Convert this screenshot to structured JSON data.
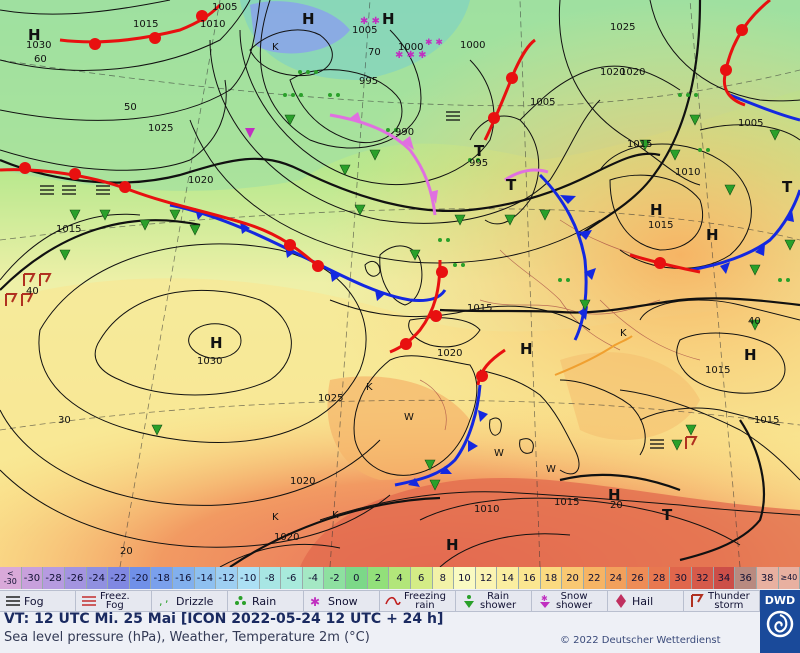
{
  "map": {
    "pressure_labels": [
      {
        "text": "1005"
      },
      {
        "text": "1010"
      },
      {
        "text": "1030"
      },
      {
        "text": "1015"
      },
      {
        "text": "1005"
      },
      {
        "text": "1000"
      },
      {
        "text": "1000"
      },
      {
        "text": "995"
      },
      {
        "text": "1025"
      },
      {
        "text": "1020"
      },
      {
        "text": "990"
      },
      {
        "text": "995"
      },
      {
        "text": "1005"
      },
      {
        "text": "1005"
      },
      {
        "text": "1015"
      },
      {
        "text": "1010"
      },
      {
        "text": "1015"
      },
      {
        "text": "1015"
      },
      {
        "text": "1020"
      },
      {
        "text": "1015"
      },
      {
        "text": "1030"
      },
      {
        "text": "1025"
      },
      {
        "text": "1020"
      },
      {
        "text": "1020"
      },
      {
        "text": "1010"
      },
      {
        "text": "1015"
      },
      {
        "text": "1020"
      },
      {
        "text": "1015"
      },
      {
        "text": "1015"
      },
      {
        "text": "1025"
      },
      {
        "text": "1020"
      }
    ],
    "lat_labels": [
      {
        "text": "60"
      },
      {
        "text": "50"
      },
      {
        "text": "40"
      },
      {
        "text": "30"
      },
      {
        "text": "20"
      },
      {
        "text": "70"
      },
      {
        "text": "40"
      },
      {
        "text": "20"
      }
    ],
    "pressure_centres": [
      {
        "text": "H"
      },
      {
        "text": "H"
      },
      {
        "text": "H"
      },
      {
        "text": "T"
      },
      {
        "text": "T"
      },
      {
        "text": "H"
      },
      {
        "text": "H"
      },
      {
        "text": "H"
      },
      {
        "text": "H"
      },
      {
        "text": "H"
      },
      {
        "text": "H"
      },
      {
        "text": "T"
      },
      {
        "text": "H"
      },
      {
        "text": "T"
      }
    ],
    "wind_labels": [
      {
        "text": "K"
      },
      {
        "text": "K"
      },
      {
        "text": "K"
      },
      {
        "text": "W"
      },
      {
        "text": "W"
      },
      {
        "text": "W"
      },
      {
        "text": "K"
      },
      {
        "text": "K"
      }
    ]
  },
  "temperature_scale": {
    "low_end": "<\n-30",
    "high_end": "≥40",
    "steps": [
      "-30",
      "-28",
      "-26",
      "-24",
      "-22",
      "-20",
      "-18",
      "-16",
      "-14",
      "-12",
      "-10",
      "-8",
      "-6",
      "-4",
      "-2",
      "0",
      "2",
      "4",
      "6",
      "8",
      "10",
      "12",
      "14",
      "16",
      "18",
      "20",
      "22",
      "24",
      "26",
      "28",
      "30",
      "32",
      "34",
      "36",
      "38"
    ],
    "colors": [
      "#d9a9d9",
      "#c8a0dc",
      "#b69be0",
      "#a394e0",
      "#9090e0",
      "#8088e2",
      "#7090e8",
      "#7aa0ec",
      "#82b0ee",
      "#8ec0f0",
      "#9ecff2",
      "#ace0f4",
      "#a8e6e4",
      "#a8eadc",
      "#a4e8c4",
      "#8ee0a0",
      "#7cd888",
      "#92e07a",
      "#b2e67a",
      "#d4ec86",
      "#f2f2a8",
      "#fafac2",
      "#fbf4b2",
      "#fbeea0",
      "#fbe690",
      "#fbda80",
      "#f9c872",
      "#f6b464",
      "#f2a05c",
      "#ee8c56",
      "#e87850",
      "#e0664c",
      "#d65a4a",
      "#cc4e48",
      "#b88a80",
      "#e8b0a0"
    ]
  },
  "legend": {
    "items": [
      {
        "label": "Fog",
        "icon": "fog-icon"
      },
      {
        "label": "Freez.\nFog",
        "icon": "freezing-fog-icon"
      },
      {
        "label": "Drizzle",
        "icon": "drizzle-icon"
      },
      {
        "label": "Rain",
        "icon": "rain-icon"
      },
      {
        "label": "Snow",
        "icon": "snow-icon"
      },
      {
        "label": "Freezing\nrain",
        "icon": "freezing-rain-icon"
      },
      {
        "label": "Rain\nshower",
        "icon": "rain-shower-icon"
      },
      {
        "label": "Snow\nshower",
        "icon": "snow-shower-icon"
      },
      {
        "label": "Hail",
        "icon": "hail-icon"
      },
      {
        "label": "Thunder\nstorm",
        "icon": "thunderstorm-icon"
      }
    ]
  },
  "valid_time": "VT: 12 UTC Mi.  25 Mai [ICON 2022-05-24  12 UTC + 24 h]",
  "subtitle": "Sea level pressure (hPa), Weather, Temperature 2m (°C)",
  "copyright": "© 2022 Deutscher Wetterdienst",
  "logo": {
    "text": "DWD"
  }
}
